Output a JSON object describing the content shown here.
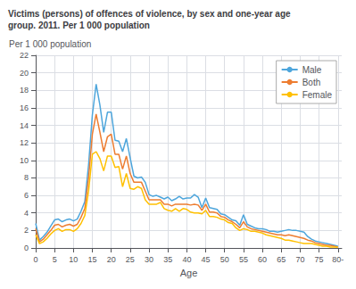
{
  "chart_data": {
    "type": "line",
    "title": "Victims (persons) of offences of violence, by sex and one-year age\ngroup. 2011. Per 1 000 population",
    "xlabel": "Age",
    "ylabel": "Per 1 000 population",
    "x": [
      0,
      1,
      2,
      3,
      4,
      5,
      6,
      7,
      8,
      9,
      10,
      11,
      12,
      13,
      14,
      15,
      16,
      17,
      18,
      19,
      20,
      21,
      22,
      23,
      24,
      25,
      26,
      27,
      28,
      29,
      30,
      31,
      32,
      33,
      34,
      35,
      36,
      37,
      38,
      39,
      40,
      41,
      42,
      43,
      44,
      45,
      46,
      47,
      48,
      49,
      50,
      51,
      52,
      53,
      54,
      55,
      56,
      57,
      58,
      59,
      60,
      61,
      62,
      63,
      64,
      65,
      66,
      67,
      68,
      69,
      70,
      71,
      72,
      73,
      74,
      75,
      76,
      77,
      78,
      79,
      80
    ],
    "xlim": [
      0,
      81
    ],
    "xticks": [
      0,
      5,
      10,
      15,
      20,
      25,
      30,
      35,
      40,
      45,
      50,
      55,
      60,
      65,
      70,
      75,
      {
        "value": 80,
        "label": "80-"
      }
    ],
    "ylim": [
      0,
      22
    ],
    "yticks": [
      0,
      2,
      4,
      6,
      8,
      10,
      12,
      14,
      16,
      18,
      20,
      22
    ],
    "grid": true,
    "legend": "upper right",
    "series": [
      {
        "name": "Male",
        "color": "#4ea6dc",
        "values": [
          2.8,
          0.9,
          1.3,
          1.8,
          2.5,
          3.2,
          3.3,
          3.0,
          3.2,
          3.3,
          3.1,
          3.3,
          4.2,
          5.3,
          9.5,
          15.2,
          18.7,
          16.3,
          13.2,
          15.5,
          15.5,
          12.3,
          12.2,
          11.0,
          12.5,
          10.3,
          8.2,
          8.0,
          8.1,
          7.5,
          6.1,
          5.9,
          6.0,
          5.8,
          5.6,
          5.8,
          5.4,
          5.6,
          5.9,
          5.6,
          5.7,
          5.7,
          6.1,
          5.8,
          4.6,
          5.7,
          4.6,
          4.5,
          4.4,
          3.9,
          3.8,
          3.5,
          3.2,
          3.1,
          2.6,
          3.8,
          2.7,
          2.5,
          2.3,
          2.2,
          2.2,
          2.1,
          1.9,
          1.9,
          1.8,
          1.9,
          2.0,
          2.1,
          2.0,
          2.0,
          1.9,
          1.8,
          1.3,
          1.0,
          0.8,
          0.7,
          0.6,
          0.5,
          0.4,
          0.3,
          0.2
        ]
      },
      {
        "name": "Both",
        "color": "#ed7d31",
        "values": [
          2.2,
          0.7,
          1.0,
          1.5,
          2.0,
          2.6,
          2.7,
          2.4,
          2.6,
          2.7,
          2.5,
          2.7,
          3.5,
          4.5,
          8.0,
          13.0,
          15.3,
          13.2,
          11.0,
          12.7,
          13.0,
          10.7,
          10.7,
          9.0,
          10.5,
          8.5,
          7.5,
          7.5,
          7.5,
          6.5,
          5.5,
          5.5,
          5.5,
          5.5,
          5.0,
          5.0,
          4.8,
          5.0,
          5.0,
          5.0,
          5.0,
          4.9,
          5.0,
          4.9,
          4.3,
          5.0,
          4.1,
          4.1,
          4.0,
          3.6,
          3.5,
          3.2,
          3.0,
          2.7,
          2.3,
          3.0,
          2.4,
          2.2,
          2.1,
          2.0,
          1.9,
          1.8,
          1.7,
          1.6,
          1.5,
          1.5,
          1.4,
          1.5,
          1.4,
          1.3,
          1.2,
          1.1,
          0.9,
          0.8,
          0.6,
          0.5,
          0.4,
          0.3,
          0.3,
          0.2,
          0.1
        ]
      },
      {
        "name": "Female",
        "color": "#ffc000",
        "values": [
          1.5,
          0.5,
          0.7,
          1.1,
          1.6,
          2.0,
          2.2,
          1.9,
          2.1,
          2.1,
          1.9,
          2.2,
          2.8,
          3.7,
          6.5,
          10.7,
          11.0,
          10.2,
          8.8,
          10.5,
          10.5,
          9.2,
          9.3,
          7.0,
          8.5,
          6.8,
          6.7,
          7.0,
          6.8,
          5.5,
          5.0,
          5.0,
          5.0,
          5.2,
          4.5,
          4.3,
          4.2,
          4.5,
          4.2,
          4.5,
          4.4,
          4.1,
          4.0,
          4.0,
          3.9,
          4.3,
          3.6,
          3.6,
          3.5,
          3.3,
          3.2,
          2.9,
          2.8,
          2.3,
          2.0,
          2.2,
          2.1,
          1.9,
          1.9,
          1.8,
          1.7,
          1.5,
          1.4,
          1.3,
          1.2,
          1.1,
          0.9,
          0.9,
          0.8,
          0.7,
          0.6,
          0.5,
          0.5,
          0.5,
          0.4,
          0.3,
          0.2,
          0.2,
          0.1,
          0.1,
          0.1
        ]
      }
    ]
  }
}
